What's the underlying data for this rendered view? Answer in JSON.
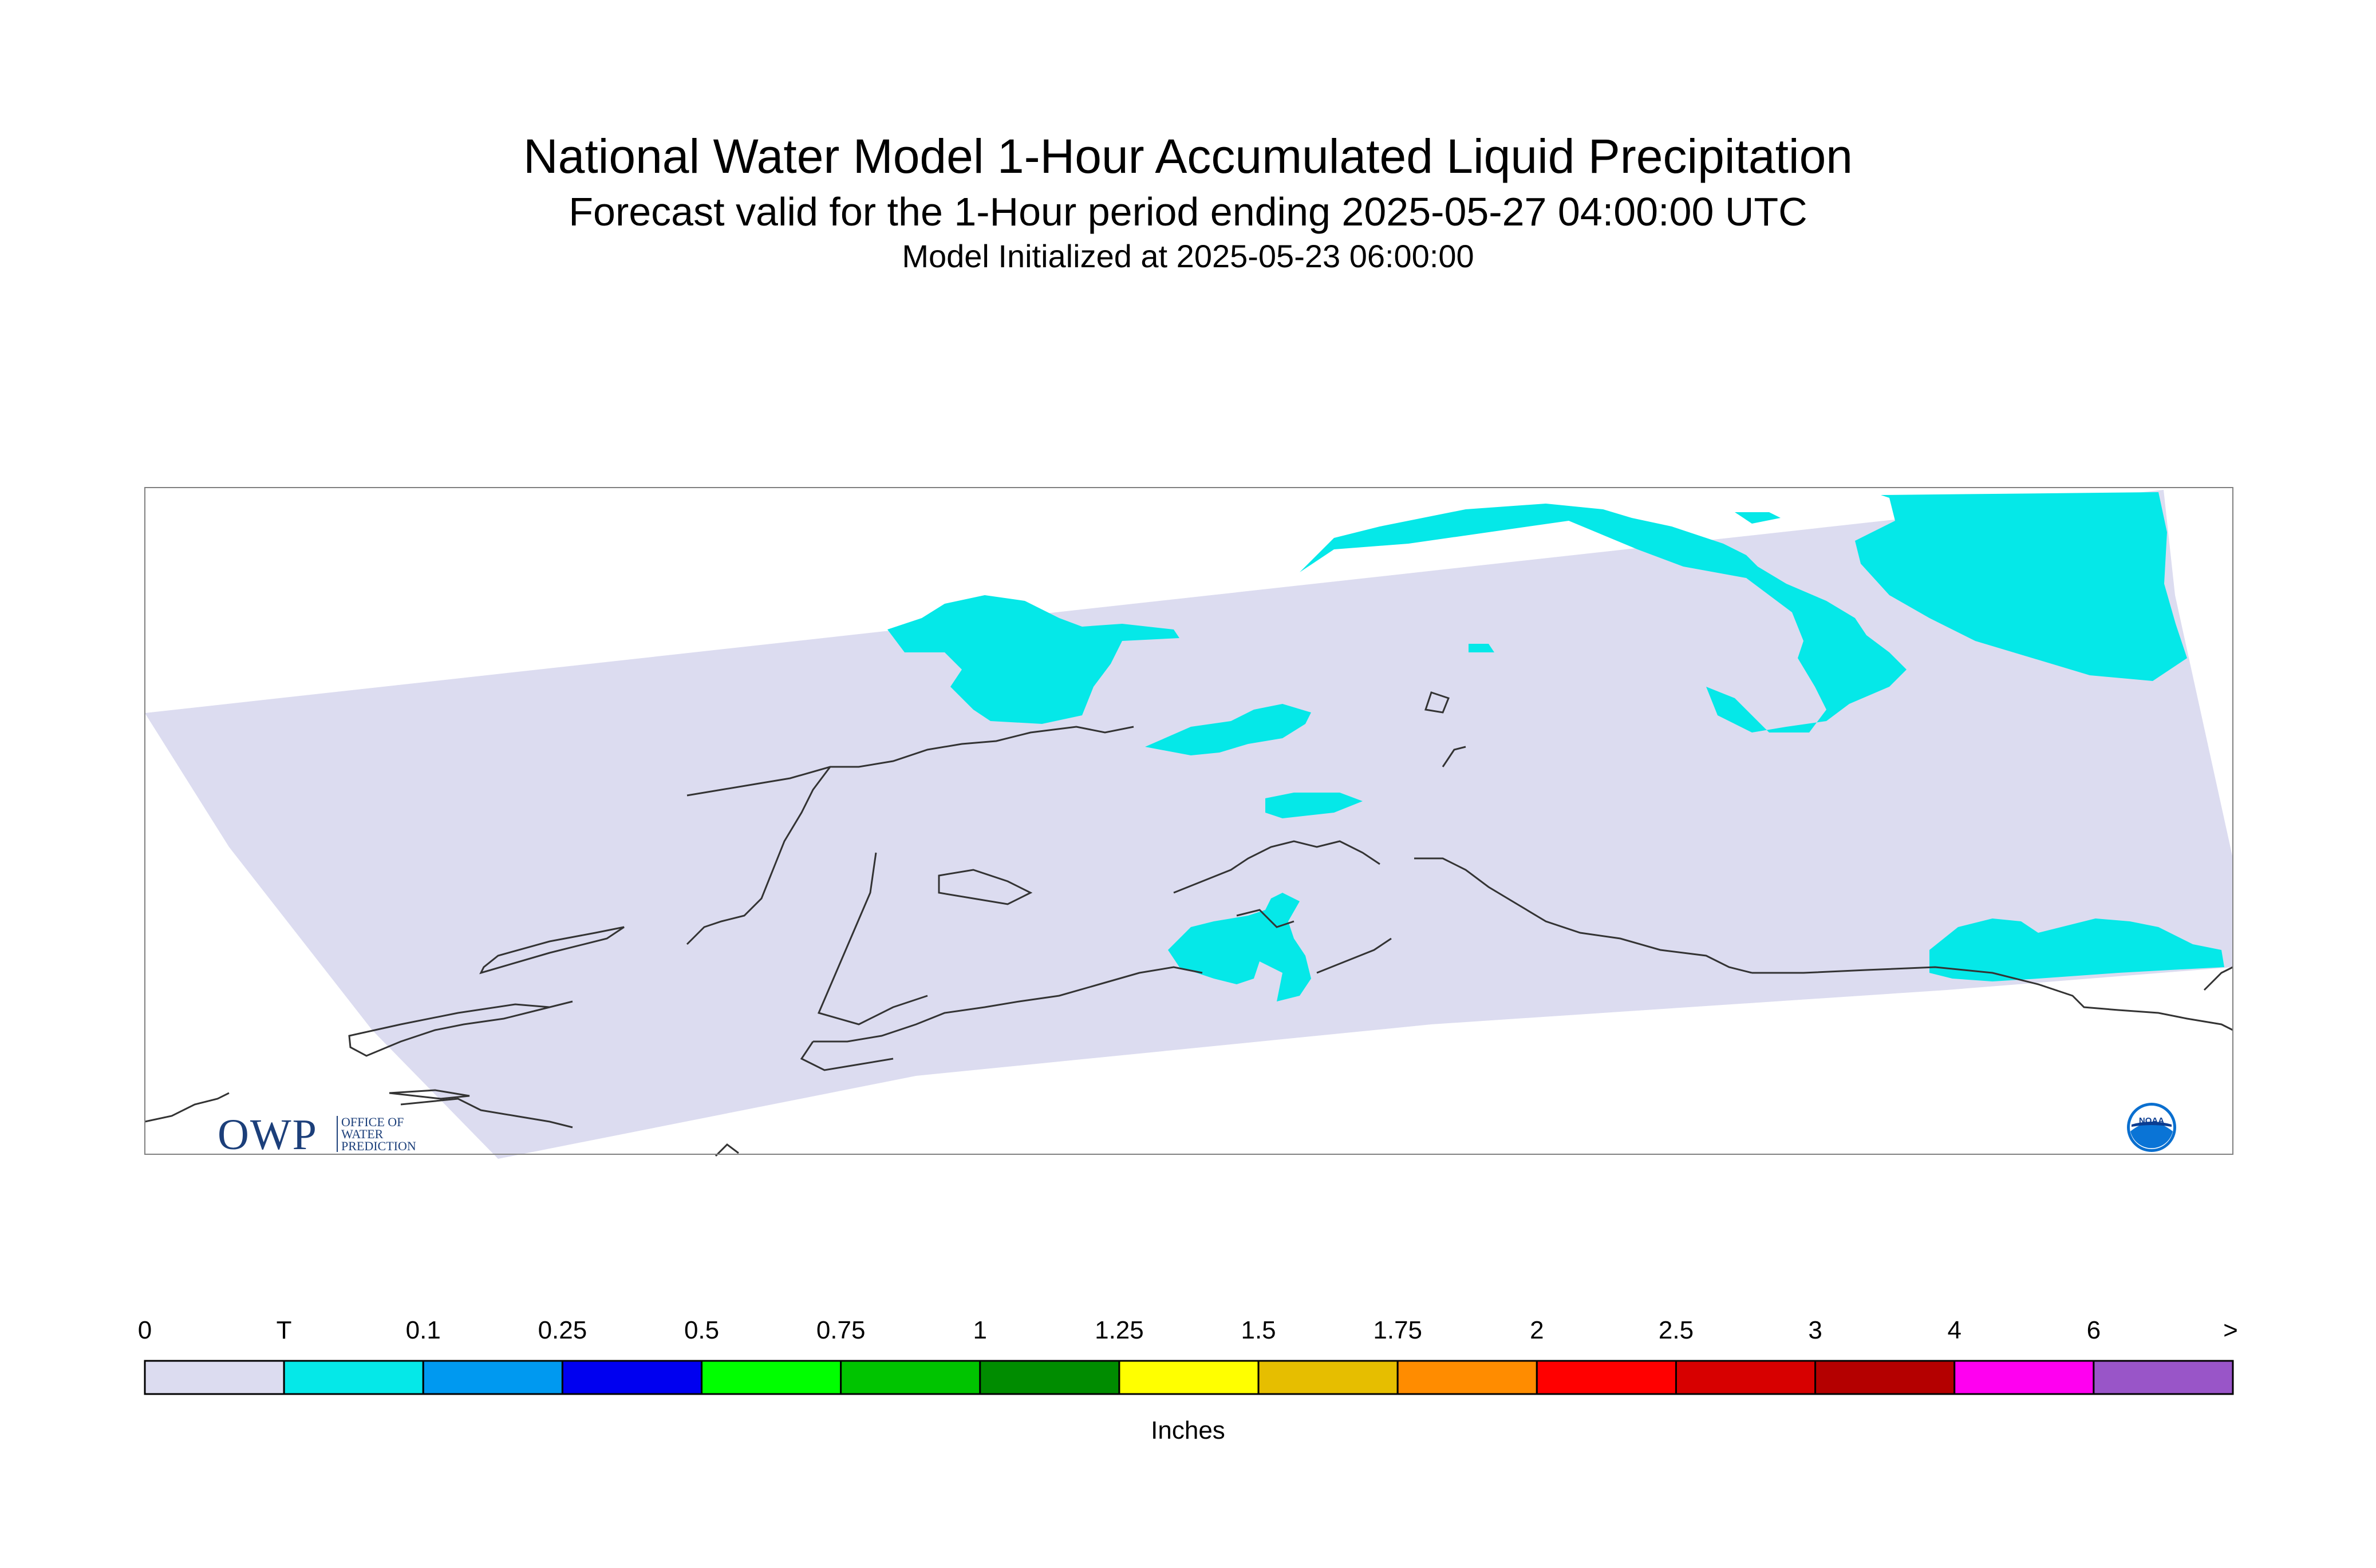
{
  "header": {
    "title": "National Water Model 1-Hour Accumulated Liquid Precipitation",
    "subtitle": "Forecast valid for the 1-Hour period ending 2025-05-27 04:00:00 UTC",
    "init_line": "Model Initialized at 2025-05-23 06:00:00"
  },
  "colorbar": {
    "units": "Inches",
    "labels": [
      "0",
      "T",
      "0.1",
      "0.25",
      "0.5",
      "0.75",
      "1",
      "1.25",
      "1.5",
      "1.75",
      "2",
      "2.5",
      "3",
      "4",
      "6",
      ">"
    ],
    "colors": [
      "#dcdcf0",
      "#05e8e8",
      "#0099f0",
      "#0000f0",
      "#00ff00",
      "#00c400",
      "#008c00",
      "#ffff00",
      "#e6be00",
      "#ff8c00",
      "#ff0000",
      "#d70000",
      "#b40000",
      "#ff00f0",
      "#9955c8"
    ]
  },
  "map": {
    "domain_fill": "#dcdcf0",
    "precip_fill": "#05e8e8",
    "coast_color": "#333333"
  },
  "logos": {
    "owp_mark": "OWP",
    "owp_text": [
      "OFFICE OF",
      "WATER",
      "PREDICTION"
    ],
    "noaa_text": "NOAA"
  }
}
